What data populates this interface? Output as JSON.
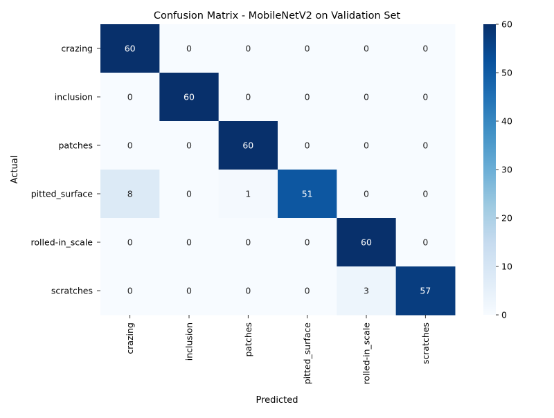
{
  "chart_data": {
    "type": "heatmap",
    "title": "Confusion Matrix - MobileNetV2 on Validation Set",
    "xlabel": "Predicted",
    "ylabel": "Actual",
    "x_categories": [
      "crazing",
      "inclusion",
      "patches",
      "pitted_surface",
      "rolled-in_scale",
      "scratches"
    ],
    "y_categories": [
      "crazing",
      "inclusion",
      "patches",
      "pitted_surface",
      "rolled-in_scale",
      "scratches"
    ],
    "values": [
      [
        60,
        0,
        0,
        0,
        0,
        0
      ],
      [
        0,
        60,
        0,
        0,
        0,
        0
      ],
      [
        0,
        0,
        60,
        0,
        0,
        0
      ],
      [
        8,
        0,
        1,
        51,
        0,
        0
      ],
      [
        0,
        0,
        0,
        0,
        60,
        0
      ],
      [
        0,
        0,
        0,
        0,
        3,
        57
      ]
    ],
    "colorbar": {
      "min": 0,
      "max": 60,
      "ticks": [
        0,
        10,
        20,
        30,
        40,
        50,
        60
      ],
      "colormap": "Blues"
    },
    "annotated": true,
    "grid": false
  }
}
